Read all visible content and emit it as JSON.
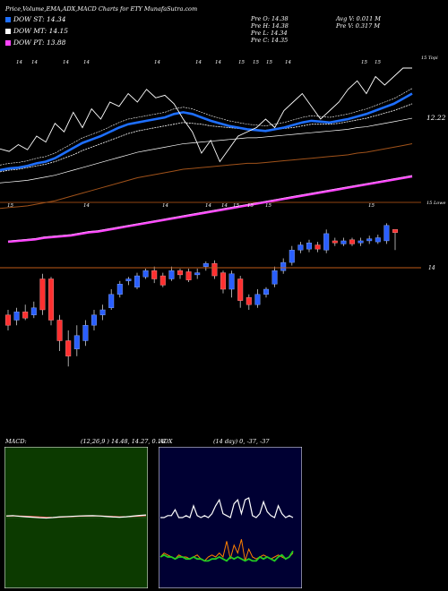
{
  "header": {
    "title": "Price,Volume,EMA,ADX,MACD Charts for ETY MunafaSutra.com",
    "ema_legend": [
      {
        "label": "DOW ST: 14.34",
        "color": "#1e6fff"
      },
      {
        "label": "DOW MT: 14.15",
        "color": "#ffffff"
      },
      {
        "label": "DOW PT: 13.88",
        "color": "#ff44ff"
      }
    ],
    "ohlc": {
      "open": "Pre  O: 14.38",
      "high": "Pre  H: 14.38",
      "low": "Pre  L: 14.34",
      "close": "Pre  C: 14.35"
    },
    "volume": {
      "avg": "Avg V: 0.011 M",
      "pre": "Pre  V: 0.317 M"
    }
  },
  "price_panel": {
    "month_labels": [
      {
        "text": "14",
        "x": 18
      },
      {
        "text": "14",
        "x": 35
      },
      {
        "text": "14",
        "x": 70
      },
      {
        "text": "14",
        "x": 93
      },
      {
        "text": "14",
        "x": 172
      },
      {
        "text": "14",
        "x": 218
      },
      {
        "text": "14",
        "x": 240
      },
      {
        "text": "15",
        "x": 266
      },
      {
        "text": "15",
        "x": 282
      },
      {
        "text": "15",
        "x": 297
      },
      {
        "text": "14",
        "x": 318
      },
      {
        "text": "15",
        "x": 403
      },
      {
        "text": "15",
        "x": 418
      }
    ],
    "mid_labels": [
      {
        "text": "15",
        "x": 8
      },
      {
        "text": "14",
        "x": 93
      },
      {
        "text": "14",
        "x": 181
      },
      {
        "text": "14",
        "x": 229
      },
      {
        "text": "14",
        "x": 247
      },
      {
        "text": "15",
        "x": 260
      },
      {
        "text": "15",
        "x": 276
      },
      {
        "text": "15",
        "x": 296
      },
      {
        "text": "15",
        "x": 411
      }
    ],
    "top_right_label": "15 Topi",
    "price_label": "12.22",
    "line_label": "15 Lowe",
    "level_label": "14"
  },
  "macd": {
    "label": "MACD:",
    "params": "(12,26,9 ) 14.48, 14.27, 0.16"
  },
  "adx": {
    "label": "ADX",
    "params": "(14  day) 0, -37, -37"
  },
  "chart_data": [
    {
      "type": "candlestick",
      "title": "Price,Volume,EMA,ADX,MACD Charts for ETY MunafaSutra.com",
      "series": [
        {
          "name": "DOW ST",
          "last": 14.34,
          "color": "#1e6fff"
        },
        {
          "name": "DOW MT",
          "last": 14.15,
          "color": "#ffffff"
        },
        {
          "name": "DOW PT",
          "last": 13.88,
          "color": "#ff44ff"
        }
      ],
      "candles": [
        {
          "o": 13.55,
          "c": 13.45,
          "h": 13.6,
          "l": 13.4
        },
        {
          "o": 13.5,
          "c": 13.58,
          "h": 13.62,
          "l": 13.45
        },
        {
          "o": 13.58,
          "c": 13.52,
          "h": 13.65,
          "l": 13.5
        },
        {
          "o": 13.55,
          "c": 13.62,
          "h": 13.68,
          "l": 13.52
        },
        {
          "o": 13.9,
          "c": 13.6,
          "h": 13.95,
          "l": 13.55
        },
        {
          "o": 13.9,
          "c": 13.5,
          "h": 13.92,
          "l": 13.45
        },
        {
          "o": 13.5,
          "c": 13.3,
          "h": 13.55,
          "l": 13.2
        },
        {
          "o": 13.3,
          "c": 13.15,
          "h": 13.4,
          "l": 13.05
        },
        {
          "o": 13.22,
          "c": 13.35,
          "h": 13.45,
          "l": 13.15
        },
        {
          "o": 13.3,
          "c": 13.45,
          "h": 13.5,
          "l": 13.25
        },
        {
          "o": 13.45,
          "c": 13.55,
          "h": 13.6,
          "l": 13.4
        },
        {
          "o": 13.55,
          "c": 13.6,
          "h": 13.65,
          "l": 13.5
        },
        {
          "o": 13.62,
          "c": 13.75,
          "h": 13.8,
          "l": 13.6
        },
        {
          "o": 13.75,
          "c": 13.85,
          "h": 13.88,
          "l": 13.72
        },
        {
          "o": 13.88,
          "c": 13.9,
          "h": 13.92,
          "l": 13.84
        },
        {
          "o": 13.82,
          "c": 13.93,
          "h": 13.96,
          "l": 13.8
        },
        {
          "o": 13.92,
          "c": 13.98,
          "h": 14.0,
          "l": 13.9
        },
        {
          "o": 13.98,
          "c": 13.9,
          "h": 14.02,
          "l": 13.86
        },
        {
          "o": 13.93,
          "c": 13.84,
          "h": 13.96,
          "l": 13.82
        },
        {
          "o": 13.9,
          "c": 13.98,
          "h": 14.02,
          "l": 13.88
        },
        {
          "o": 13.98,
          "c": 13.94,
          "h": 14.0,
          "l": 13.9
        },
        {
          "o": 13.97,
          "c": 13.89,
          "h": 14.0,
          "l": 13.87
        },
        {
          "o": 13.94,
          "c": 13.96,
          "h": 14.0,
          "l": 13.9
        },
        {
          "o": 14.02,
          "c": 14.05,
          "h": 14.07,
          "l": 13.98
        },
        {
          "o": 14.05,
          "c": 13.93,
          "h": 14.08,
          "l": 13.9
        },
        {
          "o": 13.96,
          "c": 13.8,
          "h": 13.98,
          "l": 13.76
        },
        {
          "o": 13.8,
          "c": 13.95,
          "h": 13.98,
          "l": 13.72
        },
        {
          "o": 13.9,
          "c": 13.69,
          "h": 13.93,
          "l": 13.62
        },
        {
          "o": 13.72,
          "c": 13.65,
          "h": 13.75,
          "l": 13.6
        },
        {
          "o": 13.65,
          "c": 13.75,
          "h": 13.8,
          "l": 13.62
        },
        {
          "o": 13.75,
          "c": 13.8,
          "h": 13.82,
          "l": 13.72
        },
        {
          "o": 13.85,
          "c": 13.98,
          "h": 14.02,
          "l": 13.82
        },
        {
          "o": 13.98,
          "c": 14.06,
          "h": 14.1,
          "l": 13.95
        },
        {
          "o": 14.06,
          "c": 14.18,
          "h": 14.22,
          "l": 14.03
        },
        {
          "o": 14.18,
          "c": 14.23,
          "h": 14.26,
          "l": 14.15
        },
        {
          "o": 14.19,
          "c": 14.25,
          "h": 14.28,
          "l": 14.16
        },
        {
          "o": 14.23,
          "c": 14.19,
          "h": 14.26,
          "l": 14.16
        },
        {
          "o": 14.18,
          "c": 14.34,
          "h": 14.38,
          "l": 14.15
        },
        {
          "o": 14.27,
          "c": 14.25,
          "h": 14.3,
          "l": 14.22
        },
        {
          "o": 14.24,
          "c": 14.27,
          "h": 14.3,
          "l": 14.22
        },
        {
          "o": 14.28,
          "c": 14.24,
          "h": 14.3,
          "l": 14.22
        },
        {
          "o": 14.25,
          "c": 14.27,
          "h": 14.3,
          "l": 14.22
        },
        {
          "o": 14.27,
          "c": 14.29,
          "h": 14.32,
          "l": 14.24
        },
        {
          "o": 14.26,
          "c": 14.3,
          "h": 14.33,
          "l": 14.24
        },
        {
          "o": 14.27,
          "c": 14.42,
          "h": 14.44,
          "l": 14.24
        },
        {
          "o": 14.38,
          "c": 14.35,
          "h": 14.38,
          "l": 14.18
        }
      ],
      "ema_short": [
        12.0,
        12.02,
        12.03,
        12.05,
        12.08,
        12.1,
        12.14,
        12.2,
        12.26,
        12.32,
        12.36,
        12.4,
        12.45,
        12.5,
        12.54,
        12.56,
        12.58,
        12.6,
        12.62,
        12.66,
        12.68,
        12.66,
        12.62,
        12.58,
        12.55,
        12.52,
        12.5,
        12.48,
        12.47,
        12.46,
        12.48,
        12.5,
        12.53,
        12.56,
        12.58,
        12.57,
        12.56,
        12.58,
        12.6,
        12.63,
        12.66,
        12.7,
        12.74,
        12.78,
        12.84,
        12.9
      ],
      "ema_mid": [
        11.98,
        12.0,
        12.01,
        12.03,
        12.05,
        12.07,
        12.1,
        12.14,
        12.18,
        12.23,
        12.27,
        12.31,
        12.35,
        12.39,
        12.43,
        12.46,
        12.48,
        12.5,
        12.52,
        12.54,
        12.56,
        12.55,
        12.54,
        12.52,
        12.51,
        12.5,
        12.49,
        12.48,
        12.47,
        12.47,
        12.48,
        12.49,
        12.5,
        12.52,
        12.54,
        12.54,
        12.54,
        12.55,
        12.57,
        12.59,
        12.61,
        12.64,
        12.67,
        12.7,
        12.74,
        12.78
      ],
      "ema_long": [
        11.85,
        11.86,
        11.87,
        11.88,
        11.9,
        11.92,
        11.94,
        11.97,
        12.0,
        12.03,
        12.06,
        12.09,
        12.12,
        12.15,
        12.18,
        12.21,
        12.23,
        12.25,
        12.27,
        12.29,
        12.31,
        12.32,
        12.33,
        12.34,
        12.35,
        12.36,
        12.37,
        12.38,
        12.38,
        12.39,
        12.4,
        12.41,
        12.42,
        12.43,
        12.44,
        12.45,
        12.46,
        12.47,
        12.48,
        12.5,
        12.51,
        12.53,
        12.55,
        12.57,
        12.59,
        12.61
      ],
      "ema_pt": [
        13.45,
        13.46,
        13.47,
        13.48,
        13.5,
        13.51,
        13.52,
        13.53,
        13.55,
        13.57,
        13.58,
        13.6,
        13.62,
        13.64,
        13.66,
        13.68,
        13.7,
        13.72,
        13.74,
        13.76,
        13.78,
        13.8,
        13.82,
        13.84,
        13.86,
        13.88,
        13.9,
        13.92,
        13.94,
        13.96,
        13.98,
        14.0,
        14.02,
        14.04,
        14.06,
        14.08,
        14.1,
        14.12,
        14.14,
        14.16,
        14.18,
        14.2,
        14.22,
        14.24,
        14.26,
        14.28
      ],
      "price_line": [
        12.25,
        12.22,
        12.3,
        12.24,
        12.4,
        12.33,
        12.55,
        12.45,
        12.68,
        12.5,
        12.72,
        12.6,
        12.8,
        12.75,
        12.9,
        12.8,
        12.95,
        12.85,
        12.88,
        12.78,
        12.6,
        12.45,
        12.2,
        12.35,
        12.1,
        12.25,
        12.4,
        12.45,
        12.5,
        12.6,
        12.5,
        12.7,
        12.8,
        12.9,
        12.75,
        12.6,
        12.7,
        12.8,
        12.95,
        13.05,
        12.9,
        13.1,
        13.0,
        13.1,
        13.2,
        13.2
      ]
    },
    {
      "type": "line",
      "title": "MACD: (12,26,9 ) 14.48, 14.27, 0.16",
      "series": [
        {
          "name": "MACD",
          "values": [
            0.1,
            0.12,
            0.08,
            0.05,
            0.02,
            -0.01,
            -0.03,
            0.0,
            0.04,
            0.06,
            0.08,
            0.1,
            0.11,
            0.12,
            0.1,
            0.07,
            0.04,
            0.02,
            0.05,
            0.09,
            0.13,
            0.16
          ]
        },
        {
          "name": "Signal",
          "values": [
            0.09,
            0.1,
            0.1,
            0.08,
            0.06,
            0.04,
            0.02,
            0.01,
            0.02,
            0.04,
            0.06,
            0.08,
            0.09,
            0.1,
            0.1,
            0.09,
            0.07,
            0.05,
            0.05,
            0.07,
            0.09,
            0.12
          ]
        }
      ]
    },
    {
      "type": "line",
      "title": "ADX (14  day) 0, -37, -37",
      "series": [
        {
          "name": "ADX",
          "values": [
            30,
            30,
            31,
            31,
            34,
            30,
            30,
            31,
            30,
            36,
            31,
            30,
            31,
            30,
            32,
            36,
            39,
            32,
            31,
            30,
            37,
            39,
            32,
            39,
            40,
            31,
            30,
            32,
            38,
            33,
            31,
            30,
            36,
            32,
            30,
            31,
            30
          ]
        },
        {
          "name": "+DI",
          "values": [
            10,
            12,
            11,
            10,
            9,
            11,
            10,
            10,
            9,
            10,
            11,
            9,
            8,
            10,
            11,
            10,
            12,
            10,
            18,
            9,
            16,
            12,
            19,
            8,
            14,
            10,
            9,
            10,
            11,
            10,
            9,
            10,
            11,
            10,
            9,
            10,
            12
          ]
        },
        {
          "name": "-DI",
          "values": [
            10,
            11,
            10,
            10,
            9,
            10,
            10,
            9,
            9,
            10,
            9,
            9,
            8,
            8,
            9,
            9,
            10,
            9,
            8,
            10,
            9,
            10,
            9,
            8,
            9,
            8,
            8,
            10,
            9,
            10,
            9,
            8,
            10,
            11,
            9,
            10,
            13
          ]
        }
      ]
    }
  ],
  "colors": {
    "blue": "#1e6fff",
    "white": "#ffffff",
    "magenta": "#ff44ff",
    "brown": "#a0521a",
    "up": "#2a5fff",
    "down": "#ff3030",
    "orange_line": "#c05a18",
    "macd_bg": "#0c3a00",
    "adx_bg": "#000033",
    "adx_green": "#22cc22",
    "adx_orange": "#ff8000"
  }
}
